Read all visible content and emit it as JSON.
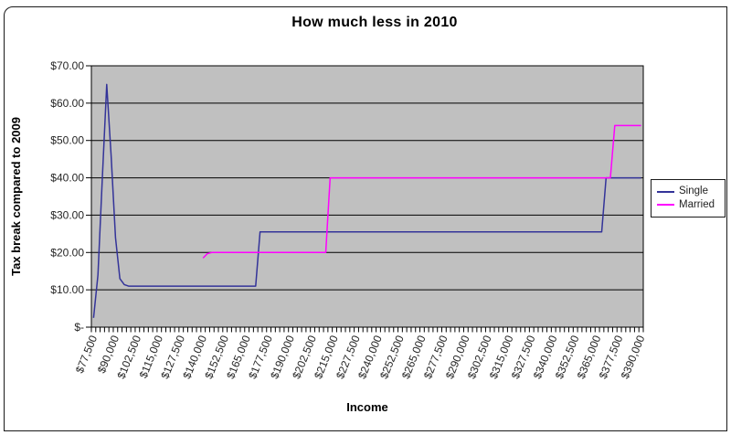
{
  "chart_data": {
    "type": "line",
    "title": "How much less in 2010",
    "xlabel": "Income",
    "ylabel": "Tax break compared to 2009",
    "plot_bg_color": "#c0c0c0",
    "grid": true,
    "gridline_color": "#000000",
    "axis_text_color": "#262626",
    "legend_position": "right",
    "ylim": [
      0,
      70
    ],
    "x_range": {
      "min": 77500,
      "max": 390000,
      "step": 2500
    },
    "yticks": [
      {
        "value": 0,
        "label": "$-"
      },
      {
        "value": 10,
        "label": "$10.00"
      },
      {
        "value": 20,
        "label": "$20.00"
      },
      {
        "value": 30,
        "label": "$30.00"
      },
      {
        "value": 40,
        "label": "$40.00"
      },
      {
        "value": 50,
        "label": "$50.00"
      },
      {
        "value": 60,
        "label": "$60.00"
      },
      {
        "value": 70,
        "label": "$70.00"
      }
    ],
    "xticks": [
      {
        "value": 77500,
        "label": "$77,500"
      },
      {
        "value": 90000,
        "label": "$90,000"
      },
      {
        "value": 102500,
        "label": "$102,500"
      },
      {
        "value": 115000,
        "label": "$115,000"
      },
      {
        "value": 127500,
        "label": "$127,500"
      },
      {
        "value": 140000,
        "label": "$140,000"
      },
      {
        "value": 152500,
        "label": "$152,500"
      },
      {
        "value": 165000,
        "label": "$165,000"
      },
      {
        "value": 177500,
        "label": "$177,500"
      },
      {
        "value": 190000,
        "label": "$190,000"
      },
      {
        "value": 202500,
        "label": "$202,500"
      },
      {
        "value": 215000,
        "label": "$215,000"
      },
      {
        "value": 227500,
        "label": "$227,500"
      },
      {
        "value": 240000,
        "label": "$240,000"
      },
      {
        "value": 252500,
        "label": "$252,500"
      },
      {
        "value": 265000,
        "label": "$265,000"
      },
      {
        "value": 277500,
        "label": "$277,500"
      },
      {
        "value": 290000,
        "label": "$290,000"
      },
      {
        "value": 302500,
        "label": "$302,500"
      },
      {
        "value": 315000,
        "label": "$315,000"
      },
      {
        "value": 327500,
        "label": "$327,500"
      },
      {
        "value": 340000,
        "label": "$340,000"
      },
      {
        "value": 352500,
        "label": "$352,500"
      },
      {
        "value": 365000,
        "label": "$365,000"
      },
      {
        "value": 377500,
        "label": "$377,500"
      },
      {
        "value": 390000,
        "label": "$390,000"
      }
    ],
    "series": [
      {
        "name": "Single",
        "color": "#333399",
        "points": [
          [
            77500,
            2.5
          ],
          [
            80000,
            14
          ],
          [
            82500,
            40
          ],
          [
            85000,
            65
          ],
          [
            87500,
            46
          ],
          [
            90000,
            24
          ],
          [
            92500,
            13
          ],
          [
            95000,
            11.4
          ],
          [
            97500,
            11
          ],
          [
            170000,
            11
          ],
          [
            172500,
            25.5
          ],
          [
            367500,
            25.5
          ],
          [
            370000,
            40
          ],
          [
            390000,
            40
          ]
        ]
      },
      {
        "name": "Married",
        "color": "#ff00ff",
        "points": [
          [
            140000,
            18.5
          ],
          [
            142500,
            19.7
          ],
          [
            145000,
            20
          ],
          [
            210000,
            20
          ],
          [
            212500,
            40
          ],
          [
            372500,
            40
          ],
          [
            375000,
            54
          ],
          [
            390000,
            54
          ]
        ]
      }
    ]
  }
}
